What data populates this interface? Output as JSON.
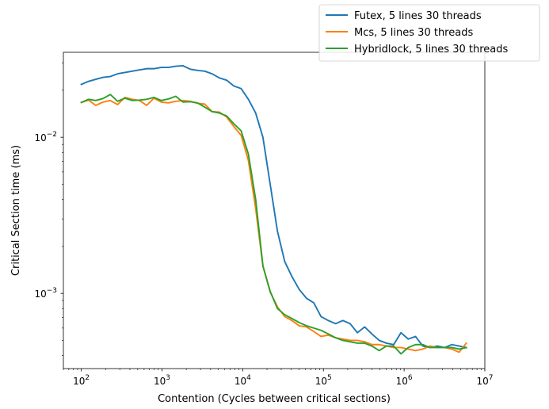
{
  "chart_data": {
    "type": "line",
    "title": "",
    "xlabel": "Contention (Cycles between critical sections)",
    "ylabel": "Critical Section time (ms)",
    "xscale": "log",
    "yscale": "log",
    "xlim": [
      60,
      10000000
    ],
    "ylim": [
      0.00033,
      0.035
    ],
    "x_ticks": [
      {
        "value": 100,
        "base": "10",
        "exp": "2"
      },
      {
        "value": 1000,
        "base": "10",
        "exp": "3"
      },
      {
        "value": 10000,
        "base": "10",
        "exp": "4"
      },
      {
        "value": 100000,
        "base": "10",
        "exp": "5"
      },
      {
        "value": 1000000,
        "base": "10",
        "exp": "6"
      },
      {
        "value": 10000000,
        "base": "10",
        "exp": "7"
      }
    ],
    "y_ticks": [
      {
        "value": 0.001,
        "base": "10",
        "exp": "−3"
      },
      {
        "value": 0.01,
        "base": "10",
        "exp": "−2"
      }
    ],
    "grid": false,
    "legend_position": "top-right",
    "x": [
      100,
      123,
      151,
      186,
      229,
      282,
      347,
      427,
      525,
      646,
      795,
      978,
      1203,
      1480,
      1821,
      2240,
      2756,
      3391,
      4172,
      5133,
      6315,
      7770,
      9560,
      11762,
      14471,
      17804,
      21905,
      26950,
      33157,
      40794,
      50190,
      61750,
      75973,
      93471,
      115000,
      141488,
      174077,
      214172,
      263502,
      324193,
      398864,
      490733,
      603762,
      742825,
      913918,
      1124419,
      1383404,
      1702040,
      2094063,
      2576357,
      3169770,
      3899850,
      4798089,
      5903218
    ],
    "series": [
      {
        "name": "Futex, 5 lines 30 threads",
        "color": "#1f77b4",
        "values": [
          0.0218,
          0.0228,
          0.0235,
          0.0242,
          0.0245,
          0.0255,
          0.026,
          0.0265,
          0.027,
          0.0275,
          0.0275,
          0.028,
          0.028,
          0.0285,
          0.0287,
          0.0273,
          0.0268,
          0.0265,
          0.0255,
          0.024,
          0.0232,
          0.0213,
          0.0205,
          0.0175,
          0.0143,
          0.01,
          0.005,
          0.0025,
          0.0016,
          0.00128,
          0.00106,
          0.00093,
          0.00087,
          0.00071,
          0.00067,
          0.00064,
          0.00067,
          0.00064,
          0.00056,
          0.00061,
          0.00055,
          0.0005,
          0.00048,
          0.00047,
          0.00056,
          0.00051,
          0.00053,
          0.00046,
          0.00045,
          0.00046,
          0.00045,
          0.00047,
          0.00046,
          0.00045
        ]
      },
      {
        "name": "Mcs, 5 lines 30 threads",
        "color": "#ff7f0e",
        "values": [
          0.0167,
          0.0173,
          0.016,
          0.0168,
          0.0172,
          0.0162,
          0.018,
          0.0175,
          0.0172,
          0.016,
          0.0178,
          0.0168,
          0.0166,
          0.017,
          0.0172,
          0.017,
          0.0165,
          0.0163,
          0.0146,
          0.0145,
          0.0135,
          0.0117,
          0.0103,
          0.0071,
          0.0035,
          0.0015,
          0.00102,
          0.00082,
          0.00071,
          0.00067,
          0.00062,
          0.00061,
          0.00057,
          0.00053,
          0.00054,
          0.00052,
          0.00051,
          0.0005,
          0.0005,
          0.00049,
          0.00047,
          0.00047,
          0.00046,
          0.00045,
          0.00045,
          0.00044,
          0.00043,
          0.00044,
          0.00046,
          0.00045,
          0.00045,
          0.00044,
          0.00042,
          0.00048
        ]
      },
      {
        "name": "Hybridlock, 5 lines 30 threads",
        "color": "#2ca02c",
        "values": [
          0.0167,
          0.0175,
          0.0172,
          0.0177,
          0.0188,
          0.017,
          0.0178,
          0.0172,
          0.0173,
          0.0175,
          0.018,
          0.0172,
          0.0176,
          0.0183,
          0.0168,
          0.0169,
          0.0166,
          0.0156,
          0.0146,
          0.0143,
          0.0137,
          0.0122,
          0.011,
          0.0078,
          0.004,
          0.0015,
          0.00103,
          0.0008,
          0.00073,
          0.00069,
          0.00065,
          0.00062,
          0.0006,
          0.00058,
          0.00055,
          0.00052,
          0.0005,
          0.00049,
          0.00048,
          0.00048,
          0.00046,
          0.00043,
          0.00046,
          0.00046,
          0.00041,
          0.00045,
          0.00047,
          0.00047,
          0.00045,
          0.00045,
          0.00045,
          0.00045,
          0.00044,
          0.00045
        ]
      }
    ]
  }
}
